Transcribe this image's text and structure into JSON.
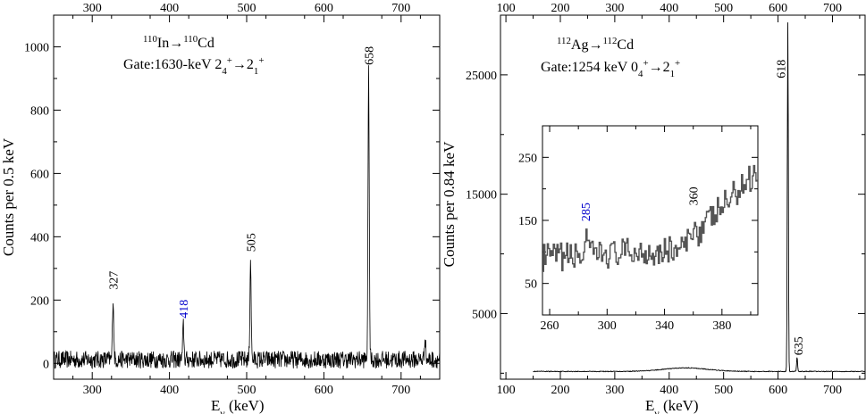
{
  "chart_data": [
    {
      "type": "line",
      "panel": "left",
      "title_lines": [
        {
          "parts": [
            {
              "t": "110",
              "sup": true
            },
            {
              "t": "In"
            },
            {
              "t": "→"
            },
            {
              "t": "110",
              "sup": true
            },
            {
              "t": "Cd"
            }
          ]
        },
        {
          "parts": [
            {
              "t": "Gate:1630-keV 2"
            },
            {
              "t": "4",
              "sub": true
            },
            {
              "t": "+",
              "sup": true
            },
            {
              "t": "→2"
            },
            {
              "t": "1",
              "sub": true
            },
            {
              "t": "+",
              "sup": true
            }
          ]
        }
      ],
      "xlabel": "E",
      "xlabel_sub": "γ",
      "xlabel_unit": " (keV)",
      "ylabel": "Counts per 0.5 keV",
      "xlim": [
        250,
        750
      ],
      "ylim": [
        -50,
        1100
      ],
      "xticks": [
        300,
        400,
        500,
        600,
        700
      ],
      "yticks": [
        0,
        200,
        400,
        600,
        800,
        1000
      ],
      "baseline": 12,
      "noise": 28,
      "peaks": [
        {
          "x": 327,
          "y": 210,
          "label": "327",
          "color": "#000000"
        },
        {
          "x": 418,
          "y": 120,
          "label": "418",
          "color": "#0000cc"
        },
        {
          "x": 505,
          "y": 330,
          "label": "505",
          "color": "#000000"
        },
        {
          "x": 658,
          "y": 920,
          "label": "658",
          "color": "#000000"
        },
        {
          "x": 731,
          "y": 90,
          "label": "",
          "color": "#000000"
        }
      ]
    },
    {
      "type": "line",
      "panel": "right",
      "title_lines": [
        {
          "parts": [
            {
              "t": "112",
              "sup": true
            },
            {
              "t": "Ag"
            },
            {
              "t": "→"
            },
            {
              "t": "112",
              "sup": true
            },
            {
              "t": "Cd"
            }
          ]
        },
        {
          "parts": [
            {
              "t": "Gate:1254 keV 0"
            },
            {
              "t": "4",
              "sub": true
            },
            {
              "t": "+",
              "sup": true
            },
            {
              "t": "→2"
            },
            {
              "t": "1",
              "sub": true
            },
            {
              "t": "+",
              "sup": true
            }
          ]
        }
      ],
      "xlabel": "E",
      "xlabel_sub": "γ",
      "xlabel_unit": " (keV)",
      "ylabel": "Counts per 0.84 keV",
      "xlim": [
        90,
        760
      ],
      "ylim": [
        -500,
        30000
      ],
      "xticks": [
        100,
        200,
        300,
        400,
        500,
        600,
        700
      ],
      "yticks": [
        5000,
        15000,
        25000
      ],
      "peaks": [
        {
          "x": 618,
          "y": 29500,
          "label": "618",
          "color": "#000000"
        },
        {
          "x": 635,
          "y": 1200,
          "label": "635",
          "color": "#000000"
        }
      ],
      "inset": {
        "xlim": [
          255,
          405
        ],
        "ylim": [
          0,
          300
        ],
        "xticks": [
          260,
          300,
          340,
          380
        ],
        "yticks": [
          50,
          150,
          250
        ],
        "peaks": [
          {
            "x": 285,
            "y": 140,
            "label": "285",
            "color": "#0000cc"
          },
          {
            "x": 360,
            "y": 165,
            "label": "360",
            "color": "#000000"
          }
        ]
      }
    }
  ]
}
